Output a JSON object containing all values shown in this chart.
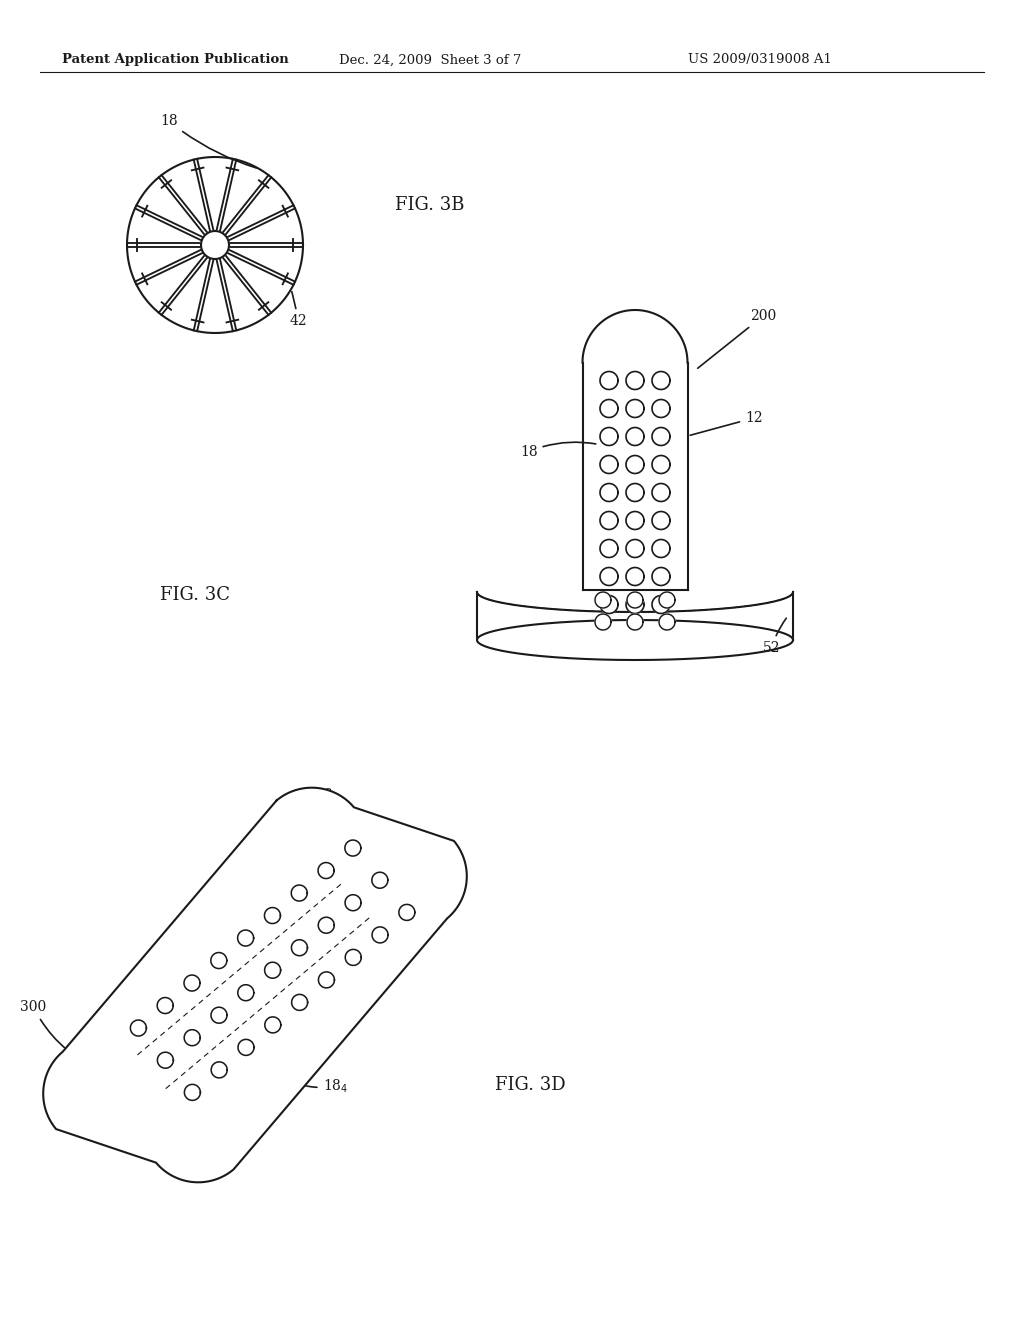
{
  "bg_color": "#ffffff",
  "header_text1": "Patent Application Publication",
  "header_text2": "Dec. 24, 2009  Sheet 3 of 7",
  "header_text3": "US 2009/0319008 A1",
  "fig3b_label": "FIG. 3B",
  "fig3c_label": "FIG. 3C",
  "fig3d_label": "FIG. 3D",
  "line_color": "#1a1a1a",
  "line_width": 1.5
}
